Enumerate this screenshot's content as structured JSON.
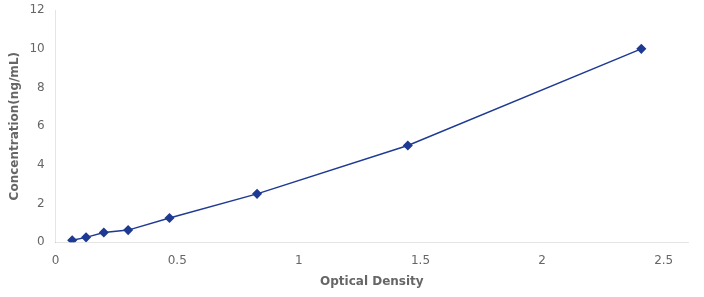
{
  "chart_data": {
    "type": "line",
    "x": [
      0.068,
      0.125,
      0.198,
      0.298,
      0.468,
      0.828,
      1.448,
      2.408
    ],
    "values": [
      0.1,
      0.25,
      0.5,
      0.625,
      1.25,
      2.5,
      5.0,
      10.0
    ],
    "color": "#1f3a93",
    "marker": "diamond",
    "line_style": "solid",
    "xlabel": "Optical Density",
    "ylabel": "Concentration(ng/mL)",
    "xlim": [
      0,
      2.6
    ],
    "ylim": [
      0,
      12
    ],
    "xticks": [
      0,
      0.5,
      1,
      1.5,
      2,
      2.5
    ],
    "yticks": [
      0,
      2,
      4,
      6,
      8,
      10,
      12
    ],
    "grid": false
  }
}
